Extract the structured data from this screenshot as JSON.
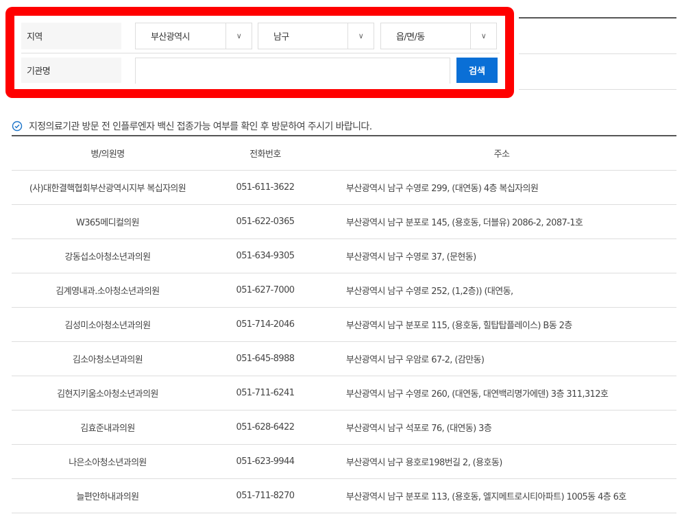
{
  "search": {
    "region_label": "지역",
    "org_label": "기관명",
    "selects": [
      {
        "value": "부산광역시"
      },
      {
        "value": "남구"
      },
      {
        "value": "읍/면/동"
      }
    ],
    "org_value": "",
    "search_button": "검색",
    "highlight_color": "#ff0000",
    "button_color": "#0a6fd6"
  },
  "notice": {
    "icon": "check-circle-icon",
    "text": "지정의료기관 방문 전 인플루엔자 백신 접종가능 여부를 확인 후 방문하여 주시기 바랍니다."
  },
  "table": {
    "headers": [
      "병/의원명",
      "전화번호",
      "주소"
    ],
    "rows": [
      [
        "(사)대한결핵협회부산광역시지부 복십자의원",
        "051-611-3622",
        "부산광역시 남구 수영로 299, (대연동) 4층 복십자의원"
      ],
      [
        "W365메디컬의원",
        "051-622-0365",
        "부산광역시 남구 분포로 145, (용호동, 더블유) 2086-2, 2087-1호"
      ],
      [
        "강동섭소아청소년과의원",
        "051-634-9305",
        "부산광역시 남구 수영로 37, (문현동)"
      ],
      [
        "김계영내과.소아청소년과의원",
        "051-627-7000",
        "부산광역시 남구 수영로 252, (1,2층)) (대연동,"
      ],
      [
        "김성미소아청소년과의원",
        "051-714-2046",
        "부산광역시 남구 분포로 115, (용호동, 힐탑탑플레이스) B동 2층"
      ],
      [
        "김소아청소년과의원",
        "051-645-8988",
        "부산광역시 남구 우암로 67-2, (감만동)"
      ],
      [
        "김현지키움소아청소년과의원",
        "051-711-6241",
        "부산광역시 남구 수영로 260, (대연동, 대연백리명가에덴) 3층 311,312호"
      ],
      [
        "김효준내과의원",
        "051-628-6422",
        "부산광역시 남구 석포로 76, (대연동) 3층"
      ],
      [
        "나은소아청소년과의원",
        "051-623-9944",
        "부산광역시 남구 용호로198번길 2, (용호동)"
      ],
      [
        "늘편안하내과의원",
        "051-711-8270",
        "부산광역시 남구 분포로 113, (용호동, 엘지메트로시티아파트) 1005동 4층 6호"
      ]
    ]
  }
}
